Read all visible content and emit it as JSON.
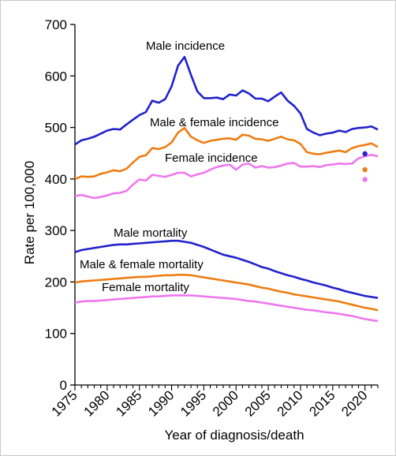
{
  "chart_data": {
    "type": "line",
    "xlabel": "Year of diagnosis/death",
    "ylabel": "Rate per 100,000",
    "xlim": [
      1975,
      2022
    ],
    "ylim": [
      0,
      700
    ],
    "x_ticks": [
      1975,
      1980,
      1985,
      1990,
      1995,
      2000,
      2005,
      2010,
      2015,
      2020
    ],
    "y_ticks": [
      0,
      100,
      200,
      300,
      400,
      500,
      600,
      700
    ],
    "grid": false,
    "legend": "none",
    "x": [
      1975,
      1976,
      1977,
      1978,
      1979,
      1980,
      1981,
      1982,
      1983,
      1984,
      1985,
      1986,
      1987,
      1988,
      1989,
      1990,
      1991,
      1992,
      1993,
      1994,
      1995,
      1996,
      1997,
      1998,
      1999,
      2000,
      2001,
      2002,
      2003,
      2004,
      2005,
      2006,
      2007,
      2008,
      2009,
      2010,
      2011,
      2012,
      2013,
      2014,
      2015,
      2016,
      2017,
      2018,
      2019,
      2020,
      2021,
      2022
    ],
    "series": [
      {
        "name": "Male incidence",
        "color": "#2222cc",
        "values": [
          467,
          475,
          478,
          482,
          488,
          494,
          497,
          496,
          506,
          515,
          524,
          530,
          552,
          548,
          555,
          580,
          620,
          637,
          602,
          570,
          557,
          557,
          558,
          555,
          564,
          562,
          572,
          566,
          556,
          556,
          551,
          560,
          568,
          552,
          542,
          527,
          497,
          490,
          485,
          488,
          490,
          494,
          491,
          497,
          499,
          500,
          502,
          496
        ]
      },
      {
        "name": "Male & female incidence",
        "color": "#ee7d13",
        "values": [
          400,
          405,
          404,
          405,
          410,
          413,
          417,
          415,
          420,
          432,
          443,
          446,
          460,
          458,
          462,
          471,
          490,
          499,
          482,
          475,
          470,
          474,
          476,
          478,
          479,
          476,
          486,
          484,
          478,
          477,
          474,
          478,
          482,
          477,
          475,
          468,
          452,
          449,
          448,
          451,
          453,
          455,
          452,
          460,
          464,
          466,
          469,
          462
        ]
      },
      {
        "name": "Female incidence",
        "color": "#ee77ee",
        "values": [
          367,
          369,
          366,
          363,
          365,
          368,
          372,
          373,
          377,
          389,
          399,
          397,
          408,
          406,
          404,
          408,
          412,
          412,
          405,
          409,
          412,
          418,
          423,
          426,
          428,
          418,
          428,
          430,
          422,
          425,
          422,
          423,
          426,
          430,
          431,
          424,
          424,
          425,
          423,
          427,
          428,
          430,
          429,
          430,
          440,
          444,
          447,
          444
        ]
      },
      {
        "name": "Male mortality",
        "color": "#2222cc",
        "values": [
          258,
          262,
          264,
          266,
          268,
          270,
          272,
          273,
          273,
          274,
          275,
          276,
          277,
          278,
          279,
          280,
          280,
          278,
          276,
          272,
          268,
          263,
          258,
          253,
          250,
          247,
          243,
          239,
          234,
          229,
          226,
          221,
          217,
          213,
          210,
          206,
          203,
          199,
          196,
          193,
          189,
          186,
          182,
          179,
          176,
          173,
          171,
          169
        ]
      },
      {
        "name": "Male & female mortality",
        "color": "#ee7d13",
        "values": [
          199,
          201,
          202,
          203,
          204,
          205,
          206,
          207,
          208,
          209,
          210,
          210,
          211,
          212,
          213,
          213,
          214,
          214,
          213,
          211,
          209,
          207,
          205,
          203,
          201,
          199,
          197,
          195,
          192,
          189,
          187,
          184,
          181,
          179,
          176,
          174,
          172,
          170,
          168,
          166,
          164,
          162,
          159,
          156,
          153,
          150,
          148,
          145
        ]
      },
      {
        "name": "Female mortality",
        "color": "#ee77ee",
        "values": [
          160,
          162,
          163,
          163,
          164,
          165,
          166,
          167,
          168,
          169,
          170,
          171,
          172,
          172,
          173,
          174,
          174,
          174,
          174,
          173,
          172,
          171,
          170,
          169,
          168,
          167,
          165,
          163,
          162,
          160,
          158,
          156,
          154,
          152,
          150,
          148,
          146,
          145,
          143,
          141,
          140,
          138,
          136,
          134,
          131,
          128,
          126,
          124
        ]
      }
    ],
    "annotations": [
      {
        "x": 2020,
        "y": 449,
        "color": "#2222cc"
      },
      {
        "x": 2020,
        "y": 418,
        "color": "#ee7d13"
      },
      {
        "x": 2020,
        "y": 399,
        "color": "#ee77ee"
      }
    ]
  }
}
